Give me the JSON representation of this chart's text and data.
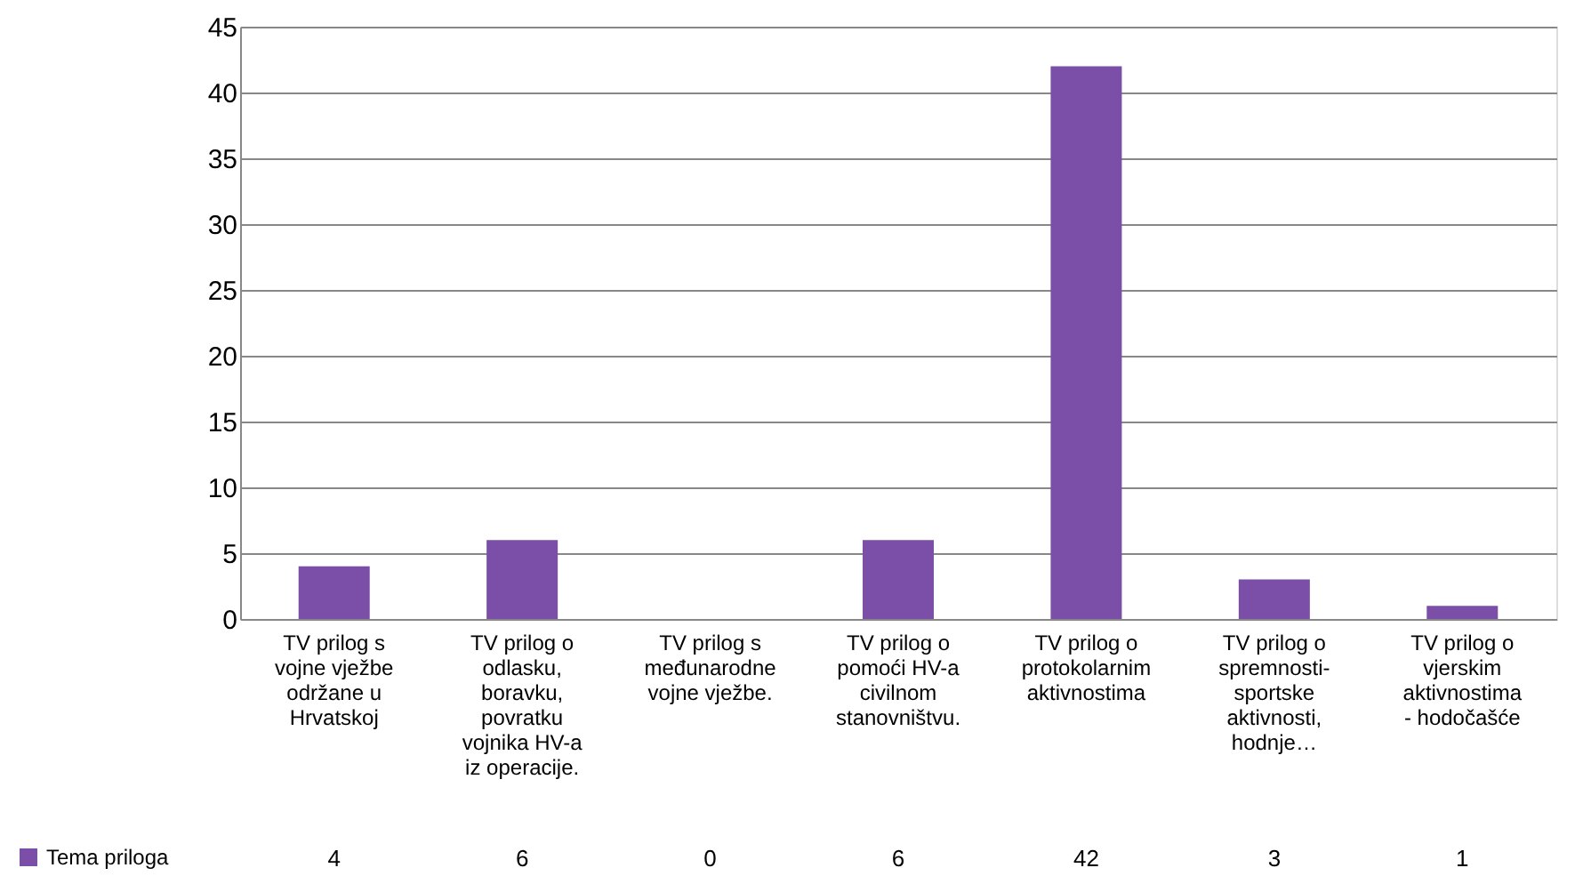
{
  "chart_data": {
    "type": "bar",
    "categories": [
      "TV prilog s vojne vježbe održane u Hrvatskoj",
      "TV prilog o odlasku, boravku, povratku vojnika HV-a iz operacije.",
      "TV prilog s međunarodne vojne vježbe.",
      "TV prilog o pomoći HV-a civilnom stanovništvu.",
      "TV prilog o protokolarnim aktivnostima",
      "TV prilog o spremnosti-sportske aktivnosti, hodnje…",
      "TV prilog o vjerskim aktivnostima - hodočašće"
    ],
    "series": [
      {
        "name": "Tema priloga",
        "color": "#7b4fa8",
        "values": [
          4,
          6,
          0,
          6,
          42,
          3,
          1
        ]
      }
    ],
    "ylim": [
      0,
      45
    ],
    "yticks": [
      0,
      5,
      10,
      15,
      20,
      25,
      30,
      35,
      40,
      45
    ],
    "grid": "y",
    "data_labels": true,
    "legend": "bottom left"
  }
}
